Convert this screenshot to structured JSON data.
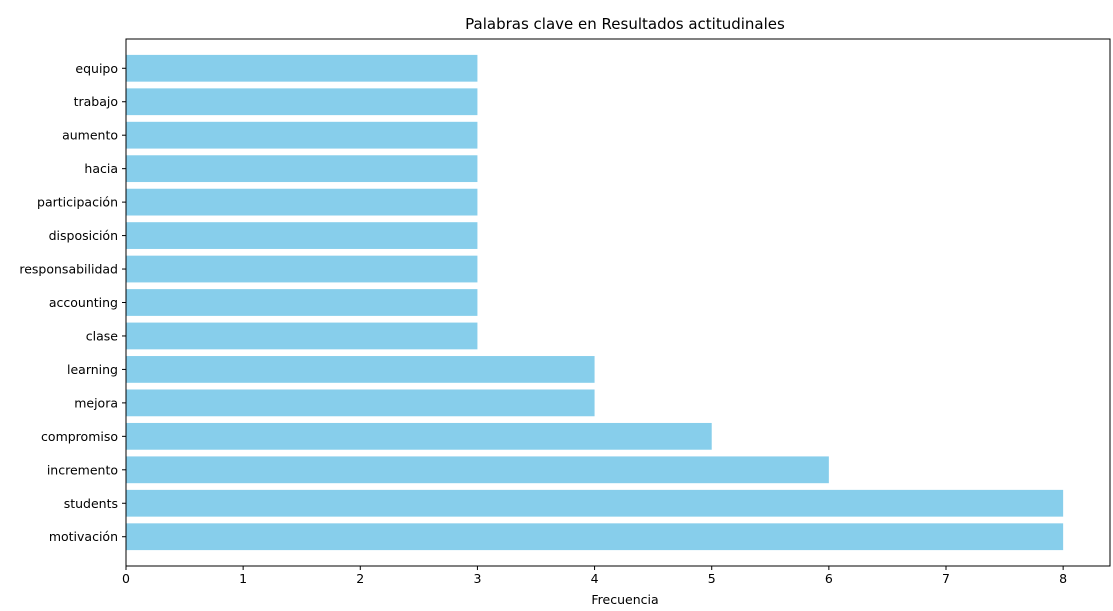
{
  "chart_data": {
    "type": "bar",
    "orientation": "horizontal",
    "title": "Palabras clave en Resultados actitudinales",
    "xlabel": "Frecuencia",
    "ylabel": "",
    "categories": [
      "motivación",
      "students",
      "incremento",
      "compromiso",
      "mejora",
      "learning",
      "clase",
      "accounting",
      "responsabilidad",
      "disposición",
      "participación",
      "hacia",
      "aumento",
      "trabajo",
      "equipo"
    ],
    "values": [
      8,
      8,
      6,
      5,
      4,
      4,
      3,
      3,
      3,
      3,
      3,
      3,
      3,
      3,
      3
    ],
    "xlim": [
      0,
      8.4
    ],
    "xticks": [
      0,
      1,
      2,
      3,
      4,
      5,
      6,
      7,
      8
    ],
    "bar_color": "#87ceeb",
    "grid": false,
    "legend": "none"
  }
}
